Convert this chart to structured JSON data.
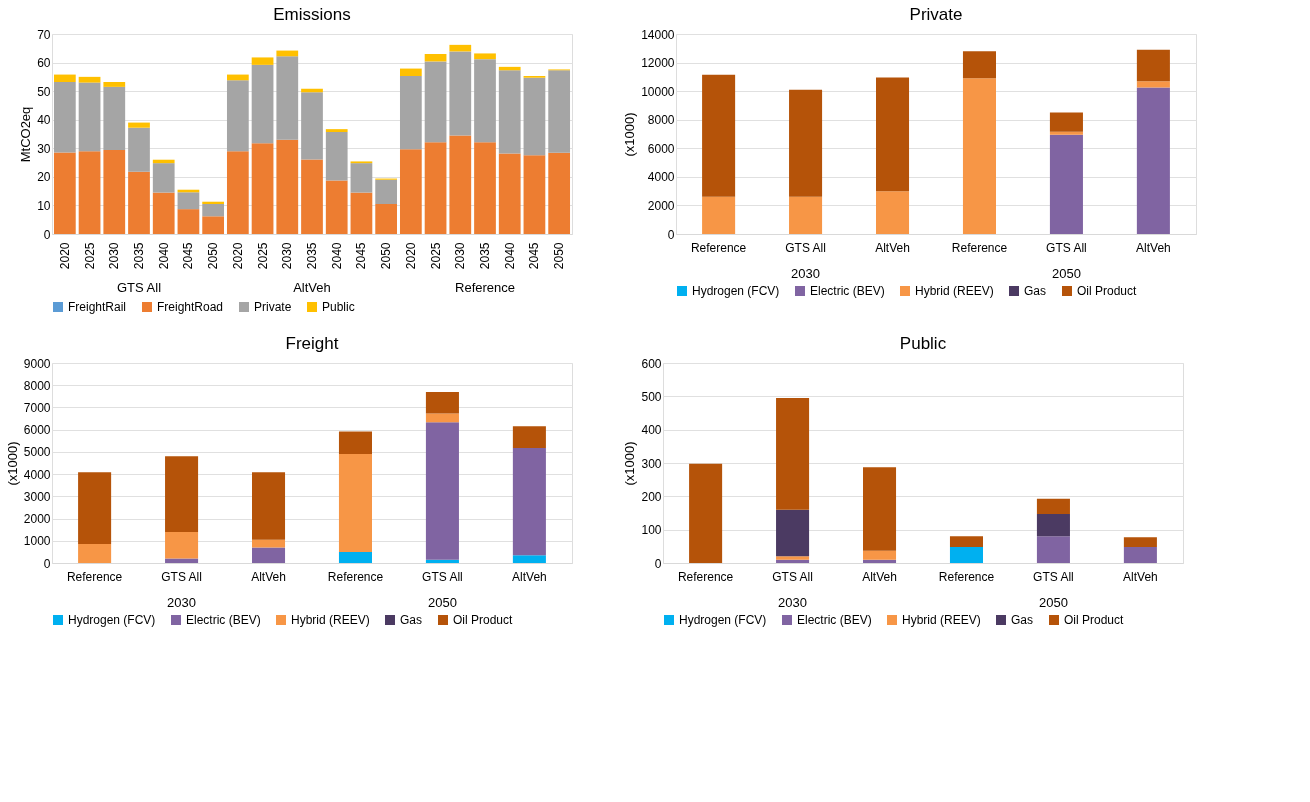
{
  "chart_data": [
    {
      "type": "bar",
      "title": "Emissions",
      "ylabel": "MtCO2eq",
      "stacked": true,
      "grid": "y",
      "legend": "bottom",
      "categories": [
        "2020",
        "2025",
        "2030",
        "2035",
        "2040",
        "2045",
        "2050",
        "2020",
        "2025",
        "2030",
        "2035",
        "2040",
        "2045",
        "2050",
        "2020",
        "2025",
        "2030",
        "2035",
        "2040",
        "2045",
        "2050"
      ],
      "annotations": [
        "GTS All",
        "AltVeh",
        "Reference"
      ],
      "ylim": [
        0,
        70
      ],
      "yticks": [
        0,
        10,
        20,
        30,
        40,
        50,
        60,
        70
      ],
      "series": [
        {
          "name": "FreightRail",
          "color": "#5b9bd5",
          "values": [
            0,
            0,
            0,
            0,
            0,
            0,
            0,
            0,
            0,
            0,
            0,
            0,
            0,
            0,
            0,
            0,
            0,
            0,
            0,
            0,
            0
          ]
        },
        {
          "name": "FreightRoad",
          "color": "#ed7d31",
          "values": [
            28.5,
            29,
            29.4,
            21.8,
            14.5,
            8.7,
            6.2,
            29,
            31.8,
            33,
            26.1,
            18.7,
            14.5,
            10.5,
            29.7,
            32.1,
            34.5,
            32.1,
            28.2,
            27.6,
            28.4
          ]
        },
        {
          "name": "Private",
          "color": "#a5a5a5",
          "values": [
            24.7,
            24,
            22.1,
            15.4,
            10.3,
            5.9,
            4.3,
            24.8,
            27.4,
            29.2,
            23.5,
            17,
            10.3,
            8.5,
            25.6,
            28.3,
            29.4,
            29.1,
            29.1,
            27.1,
            28.9
          ]
        },
        {
          "name": "Public",
          "color": "#ffc000",
          "values": [
            2.6,
            2,
            1.7,
            1.8,
            1.2,
            0.9,
            0.8,
            2,
            2.6,
            2,
            1.2,
            1,
            0.6,
            0.4,
            2.6,
            2.6,
            2.3,
            2,
            1.2,
            0.6,
            0.3
          ]
        }
      ]
    },
    {
      "type": "bar",
      "title": "Private",
      "ylabel": "(x1000)",
      "stacked": true,
      "grid": "y",
      "legend": "bottom",
      "categories": [
        "Reference",
        "GTS All",
        "AltVeh",
        "Reference",
        "GTS All",
        "AltVeh"
      ],
      "annotations": [
        "2030",
        "2050"
      ],
      "ylim": [
        0,
        14000
      ],
      "yticks": [
        0,
        2000,
        4000,
        6000,
        8000,
        10000,
        12000,
        14000
      ],
      "series": [
        {
          "name": "Hydrogen (FCV)",
          "color": "#00b0f0",
          "values": [
            0,
            0,
            0,
            0,
            0,
            0
          ]
        },
        {
          "name": "Electric (BEV)",
          "color": "#8064a2",
          "values": [
            0,
            0,
            0,
            0,
            6950,
            10250
          ]
        },
        {
          "name": "Hybrid (REEV)",
          "color": "#f79646",
          "values": [
            2600,
            2600,
            3000,
            10900,
            200,
            450
          ]
        },
        {
          "name": "Gas",
          "color": "#4b3a62",
          "values": [
            0,
            0,
            0,
            0,
            0,
            0
          ]
        },
        {
          "name": "Oil Product",
          "color": "#b55309",
          "values": [
            8550,
            7500,
            7950,
            1900,
            1350,
            2200
          ]
        }
      ]
    },
    {
      "type": "bar",
      "title": "Freight",
      "ylabel": "(x1000)",
      "stacked": true,
      "grid": "y",
      "legend": "bottom",
      "categories": [
        "Reference",
        "GTS All",
        "AltVeh",
        "Reference",
        "GTS All",
        "AltVeh"
      ],
      "annotations": [
        "2030",
        "2050"
      ],
      "ylim": [
        0,
        9000
      ],
      "yticks": [
        0,
        1000,
        2000,
        3000,
        4000,
        5000,
        6000,
        7000,
        8000,
        9000
      ],
      "series": [
        {
          "name": "Hydrogen (FCV)",
          "color": "#00b0f0",
          "values": [
            0,
            0,
            0,
            500,
            150,
            350
          ]
        },
        {
          "name": "Electric (BEV)",
          "color": "#8064a2",
          "values": [
            0,
            200,
            700,
            0,
            6180,
            4820
          ]
        },
        {
          "name": "Hybrid (REEV)",
          "color": "#f79646",
          "values": [
            850,
            1200,
            350,
            4400,
            400,
            0
          ]
        },
        {
          "name": "Gas",
          "color": "#4b3a62",
          "values": [
            0,
            0,
            0,
            0,
            0,
            0
          ]
        },
        {
          "name": "Oil Product",
          "color": "#b55309",
          "values": [
            3230,
            3400,
            3030,
            1020,
            970,
            980
          ]
        }
      ]
    },
    {
      "type": "bar",
      "title": "Public",
      "ylabel": "(x1000)",
      "stacked": true,
      "grid": "y",
      "legend": "bottom",
      "categories": [
        "Reference",
        "GTS All",
        "AltVeh",
        "Reference",
        "GTS All",
        "AltVeh"
      ],
      "annotations": [
        "2030",
        "2050"
      ],
      "ylim": [
        0,
        600
      ],
      "yticks": [
        0,
        100,
        200,
        300,
        400,
        500,
        600
      ],
      "series": [
        {
          "name": "Hydrogen (FCV)",
          "color": "#00b0f0",
          "values": [
            0,
            0,
            0,
            48,
            0,
            0
          ]
        },
        {
          "name": "Electric (BEV)",
          "color": "#8064a2",
          "values": [
            0,
            10,
            10,
            0,
            80,
            48
          ]
        },
        {
          "name": "Hybrid (REEV)",
          "color": "#f79646",
          "values": [
            0,
            10,
            27,
            0,
            0,
            0
          ]
        },
        {
          "name": "Gas",
          "color": "#4b3a62",
          "values": [
            0,
            140,
            0,
            0,
            67,
            0
          ]
        },
        {
          "name": "Oil Product",
          "color": "#b55309",
          "values": [
            298,
            335,
            250,
            32,
            46,
            29
          ]
        }
      ]
    }
  ]
}
